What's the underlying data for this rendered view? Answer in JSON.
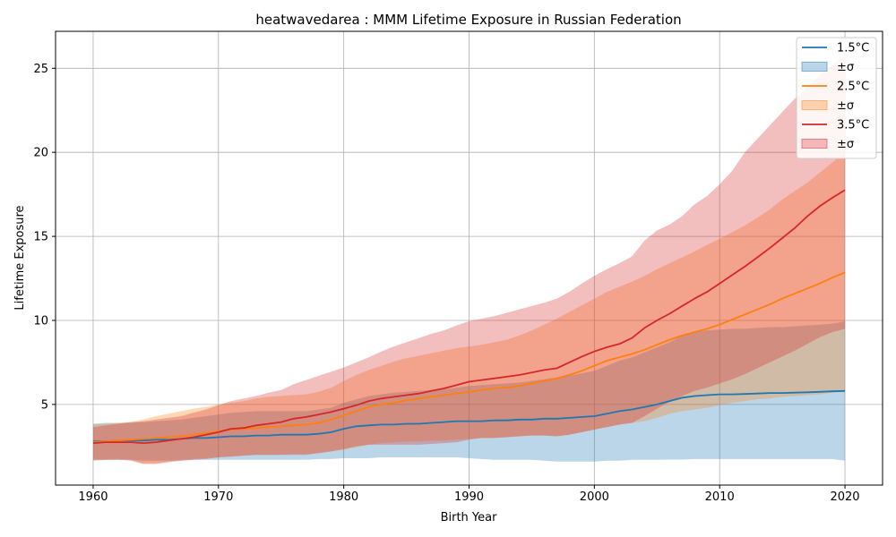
{
  "chart_data": {
    "type": "line",
    "title": "heatwavedarea : MMM Lifetime Exposure in Russian Federation",
    "xlabel": "Birth Year",
    "ylabel": "Lifetime Exposure",
    "xlim": [
      1957,
      2023
    ],
    "ylim": [
      0.2,
      27.2
    ],
    "xticks": [
      1960,
      1970,
      1980,
      1990,
      2000,
      2010,
      2020
    ],
    "yticks": [
      5,
      10,
      15,
      20,
      25
    ],
    "grid": true,
    "legend_position": "top-right",
    "x": [
      1960,
      1961,
      1962,
      1963,
      1964,
      1965,
      1966,
      1967,
      1968,
      1969,
      1970,
      1971,
      1972,
      1973,
      1974,
      1975,
      1976,
      1977,
      1978,
      1979,
      1980,
      1981,
      1982,
      1983,
      1984,
      1985,
      1986,
      1987,
      1988,
      1989,
      1990,
      1991,
      1992,
      1993,
      1994,
      1995,
      1996,
      1997,
      1998,
      1999,
      2000,
      2001,
      2002,
      2003,
      2004,
      2005,
      2006,
      2007,
      2008,
      2009,
      2010,
      2011,
      2012,
      2013,
      2014,
      2015,
      2016,
      2017,
      2018,
      2019,
      2020
    ],
    "series": [
      {
        "name": "1.5°C",
        "band_label": "±σ",
        "color": "#1f77b4",
        "mean": [
          2.8,
          2.8,
          2.85,
          2.85,
          2.85,
          2.9,
          2.9,
          2.95,
          3.0,
          3.0,
          3.05,
          3.1,
          3.1,
          3.15,
          3.15,
          3.2,
          3.2,
          3.2,
          3.25,
          3.35,
          3.55,
          3.7,
          3.75,
          3.8,
          3.8,
          3.85,
          3.85,
          3.9,
          3.95,
          4.0,
          4.0,
          4.0,
          4.05,
          4.05,
          4.1,
          4.1,
          4.15,
          4.15,
          4.2,
          4.25,
          4.3,
          4.45,
          4.6,
          4.7,
          4.85,
          5.0,
          5.2,
          5.4,
          5.5,
          5.55,
          5.6,
          5.6,
          5.62,
          5.65,
          5.68,
          5.68,
          5.7,
          5.72,
          5.75,
          5.78,
          5.8
        ],
        "lower": [
          1.7,
          1.7,
          1.7,
          1.7,
          1.65,
          1.65,
          1.65,
          1.65,
          1.7,
          1.7,
          1.7,
          1.7,
          1.7,
          1.7,
          1.7,
          1.7,
          1.7,
          1.7,
          1.75,
          1.75,
          1.8,
          1.8,
          1.8,
          1.85,
          1.85,
          1.85,
          1.85,
          1.85,
          1.85,
          1.85,
          1.8,
          1.75,
          1.7,
          1.7,
          1.7,
          1.7,
          1.65,
          1.6,
          1.6,
          1.6,
          1.6,
          1.65,
          1.65,
          1.7,
          1.7,
          1.7,
          1.72,
          1.72,
          1.75,
          1.75,
          1.75,
          1.75,
          1.75,
          1.75,
          1.75,
          1.75,
          1.75,
          1.75,
          1.75,
          1.75,
          1.65
        ],
        "upper": [
          3.85,
          3.9,
          3.9,
          3.9,
          3.95,
          4.0,
          4.05,
          4.1,
          4.2,
          4.3,
          4.4,
          4.5,
          4.55,
          4.6,
          4.6,
          4.6,
          4.6,
          4.6,
          4.7,
          4.8,
          5.1,
          5.3,
          5.5,
          5.6,
          5.7,
          5.75,
          5.8,
          5.85,
          5.9,
          6.0,
          6.1,
          6.15,
          6.2,
          6.25,
          6.3,
          6.4,
          6.5,
          6.6,
          6.7,
          6.85,
          7.0,
          7.3,
          7.6,
          7.8,
          8.1,
          8.4,
          8.7,
          9.1,
          9.3,
          9.4,
          9.45,
          9.5,
          9.5,
          9.55,
          9.6,
          9.6,
          9.65,
          9.7,
          9.75,
          9.8,
          9.95
        ]
      },
      {
        "name": "2.5°C",
        "band_label": "±σ",
        "color": "#ff7f0e",
        "mean": [
          2.75,
          2.8,
          2.85,
          2.9,
          2.95,
          3.0,
          3.05,
          3.1,
          3.2,
          3.3,
          3.4,
          3.5,
          3.55,
          3.6,
          3.65,
          3.7,
          3.75,
          3.8,
          3.9,
          4.1,
          4.35,
          4.6,
          4.85,
          5.0,
          5.1,
          5.25,
          5.35,
          5.45,
          5.55,
          5.65,
          5.75,
          5.85,
          5.95,
          6.0,
          6.1,
          6.25,
          6.4,
          6.55,
          6.75,
          7.0,
          7.3,
          7.6,
          7.8,
          8.0,
          8.25,
          8.55,
          8.85,
          9.1,
          9.3,
          9.5,
          9.75,
          10.05,
          10.35,
          10.65,
          10.95,
          11.3,
          11.6,
          11.9,
          12.2,
          12.55,
          12.85
        ],
        "lower": [
          1.7,
          1.7,
          1.75,
          1.7,
          1.5,
          1.5,
          1.6,
          1.7,
          1.75,
          1.8,
          1.85,
          1.9,
          1.95,
          2.0,
          2.0,
          2.0,
          2.05,
          2.05,
          2.1,
          2.2,
          2.3,
          2.45,
          2.6,
          2.7,
          2.75,
          2.8,
          2.8,
          2.85,
          2.85,
          2.9,
          2.95,
          3.0,
          3.0,
          3.05,
          3.1,
          3.15,
          3.15,
          3.1,
          3.2,
          3.35,
          3.5,
          3.65,
          3.8,
          3.9,
          4.0,
          4.2,
          4.45,
          4.6,
          4.7,
          4.8,
          4.95,
          5.1,
          5.2,
          5.3,
          5.35,
          5.45,
          5.5,
          5.55,
          5.6,
          5.7,
          5.75
        ],
        "upper": [
          3.8,
          3.85,
          3.9,
          3.95,
          4.1,
          4.3,
          4.45,
          4.6,
          4.75,
          4.85,
          5.0,
          5.1,
          5.2,
          5.35,
          5.45,
          5.5,
          5.55,
          5.6,
          5.75,
          6.0,
          6.4,
          6.75,
          7.05,
          7.3,
          7.55,
          7.75,
          7.9,
          8.05,
          8.2,
          8.35,
          8.45,
          8.55,
          8.7,
          8.85,
          9.1,
          9.4,
          9.75,
          10.1,
          10.5,
          10.9,
          11.3,
          11.7,
          12.0,
          12.3,
          12.65,
          13.05,
          13.4,
          13.75,
          14.1,
          14.5,
          14.85,
          15.25,
          15.65,
          16.1,
          16.6,
          17.2,
          17.7,
          18.2,
          18.8,
          19.4,
          20.0
        ]
      },
      {
        "name": "3.5°C",
        "band_label": "±σ",
        "color": "#d62728",
        "mean": [
          2.7,
          2.75,
          2.75,
          2.75,
          2.7,
          2.75,
          2.85,
          2.95,
          3.05,
          3.2,
          3.35,
          3.55,
          3.6,
          3.75,
          3.85,
          3.95,
          4.15,
          4.25,
          4.4,
          4.55,
          4.75,
          4.95,
          5.2,
          5.35,
          5.45,
          5.55,
          5.65,
          5.8,
          5.95,
          6.15,
          6.35,
          6.45,
          6.55,
          6.65,
          6.75,
          6.9,
          7.05,
          7.15,
          7.5,
          7.85,
          8.15,
          8.4,
          8.6,
          8.95,
          9.55,
          10.0,
          10.4,
          10.85,
          11.3,
          11.7,
          12.2,
          12.7,
          13.2,
          13.75,
          14.3,
          14.9,
          15.5,
          16.2,
          16.8,
          17.3,
          17.75
        ],
        "lower": [
          1.65,
          1.7,
          1.7,
          1.65,
          1.45,
          1.45,
          1.55,
          1.65,
          1.7,
          1.75,
          1.85,
          1.9,
          1.95,
          2.0,
          2.0,
          2.0,
          2.0,
          2.0,
          2.1,
          2.2,
          2.35,
          2.5,
          2.6,
          2.6,
          2.6,
          2.6,
          2.6,
          2.65,
          2.7,
          2.75,
          2.9,
          3.0,
          3.0,
          3.05,
          3.1,
          3.15,
          3.15,
          3.1,
          3.2,
          3.35,
          3.5,
          3.65,
          3.8,
          3.9,
          4.3,
          4.75,
          5.15,
          5.5,
          5.8,
          6.0,
          6.25,
          6.5,
          6.8,
          7.15,
          7.5,
          7.85,
          8.2,
          8.6,
          9.0,
          9.3,
          9.5
        ],
        "upper": [
          3.65,
          3.75,
          3.85,
          3.95,
          4.0,
          4.1,
          4.2,
          4.3,
          4.5,
          4.7,
          4.95,
          5.2,
          5.35,
          5.5,
          5.7,
          5.85,
          6.2,
          6.45,
          6.7,
          6.95,
          7.2,
          7.5,
          7.8,
          8.15,
          8.45,
          8.7,
          8.95,
          9.2,
          9.4,
          9.7,
          9.95,
          10.1,
          10.25,
          10.45,
          10.65,
          10.85,
          11.05,
          11.3,
          11.7,
          12.2,
          12.65,
          13.05,
          13.4,
          13.8,
          14.75,
          15.35,
          15.7,
          16.2,
          16.9,
          17.4,
          18.1,
          18.9,
          20.0,
          20.8,
          21.6,
          22.4,
          23.2,
          23.9,
          24.6,
          25.2,
          25.8
        ]
      }
    ]
  }
}
